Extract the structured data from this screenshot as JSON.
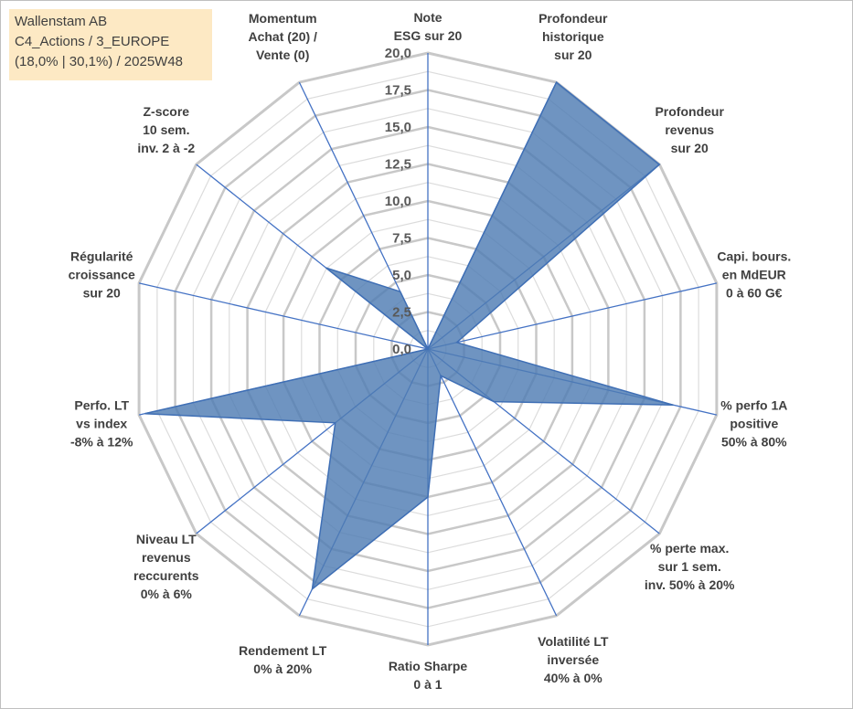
{
  "title": {
    "line1": "Wallenstam AB",
    "line2": "C4_Actions / 3_EUROPE",
    "line3": "(18,0% | 30,1%) / 2025W48"
  },
  "chart_data": {
    "type": "radar",
    "rmin": 0,
    "rmax": 20,
    "ticks": [
      "0,0",
      "2,5",
      "5,0",
      "7,5",
      "10,0",
      "12,5",
      "15,0",
      "17,5",
      "20,0"
    ],
    "grid": true,
    "series_color": "#4f7db3",
    "axes": [
      {
        "label": [
          "Note",
          "ESG sur 20"
        ]
      },
      {
        "label": [
          "Profondeur",
          "historique",
          "sur 20"
        ]
      },
      {
        "label": [
          "Profondeur",
          "revenus",
          "sur 20"
        ]
      },
      {
        "label": [
          "Capi. bours.",
          "en MdEUR",
          "0 à 60 G€"
        ]
      },
      {
        "label": [
          "% perfo 1A",
          "positive",
          "50% à 80%"
        ]
      },
      {
        "label": [
          "% perte max.",
          "sur 1 sem.",
          "inv. 50% à 20%"
        ]
      },
      {
        "label": [
          "Volatilité LT",
          "inversée",
          "40% à 0%"
        ]
      },
      {
        "label": [
          "Ratio Sharpe",
          "0 à 1"
        ]
      },
      {
        "label": [
          "Rendement LT",
          "0% à 20%"
        ]
      },
      {
        "label": [
          "Niveau LT",
          "revenus",
          "reccurents",
          "0% à 6%"
        ]
      },
      {
        "label": [
          "Perfo. LT",
          "vs index",
          "-8% à 12%"
        ]
      },
      {
        "label": [
          "Régularité",
          "croissance",
          "sur 20"
        ]
      },
      {
        "label": [
          "Z-score",
          "10 sem.",
          "inv. 2 à -2"
        ]
      },
      {
        "label": [
          "Momentum",
          "Achat (20) /",
          "Vente (0)"
        ]
      }
    ],
    "values": [
      0.0,
      20.0,
      20.0,
      2.0,
      17.0,
      5.7,
      2.0,
      10.0,
      18.0,
      8.0,
      19.6,
      0.0,
      8.8,
      4.3
    ]
  }
}
